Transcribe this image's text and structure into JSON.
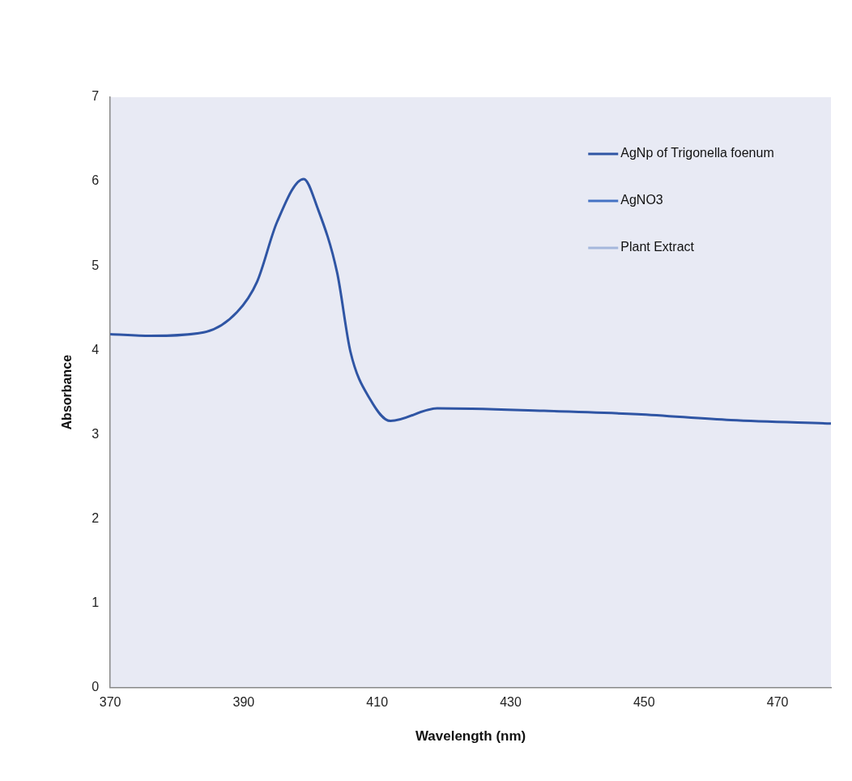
{
  "chart_data": {
    "type": "line",
    "xlabel": "Wavelength (nm)",
    "ylabel": "Absorbance",
    "x": [
      370,
      376,
      384,
      389,
      392,
      395,
      399,
      401,
      404,
      406,
      409,
      412,
      419,
      435,
      449,
      463,
      478
    ],
    "series": [
      {
        "name": "AgNp of Trigonella foenum",
        "color": "#2f55a4",
        "values": [
          4.19,
          4.17,
          4.21,
          4.45,
          4.81,
          5.52,
          6.03,
          5.7,
          4.92,
          3.98,
          3.41,
          3.16,
          3.31,
          3.28,
          3.24,
          3.17,
          3.13
        ]
      },
      {
        "name": "AgNO3",
        "color": "#4472c4",
        "values": [
          null,
          null,
          null,
          null,
          null,
          null,
          null,
          null,
          null,
          null,
          null,
          null,
          null,
          null,
          null,
          null,
          null
        ]
      },
      {
        "name": "Plant Extract",
        "color": "#a5b7dc",
        "values": [
          null,
          null,
          null,
          null,
          null,
          null,
          null,
          null,
          null,
          null,
          null,
          null,
          null,
          null,
          null,
          null,
          null
        ]
      }
    ],
    "xlim": [
      370,
      478
    ],
    "xticks": [
      370,
      390,
      410,
      430,
      450,
      470
    ],
    "ylim": [
      0,
      7
    ],
    "yticks": [
      0,
      1,
      2,
      3,
      4,
      5,
      6,
      7
    ],
    "grid": false,
    "legend": "top right",
    "marker": "none",
    "line_style": "solid"
  }
}
